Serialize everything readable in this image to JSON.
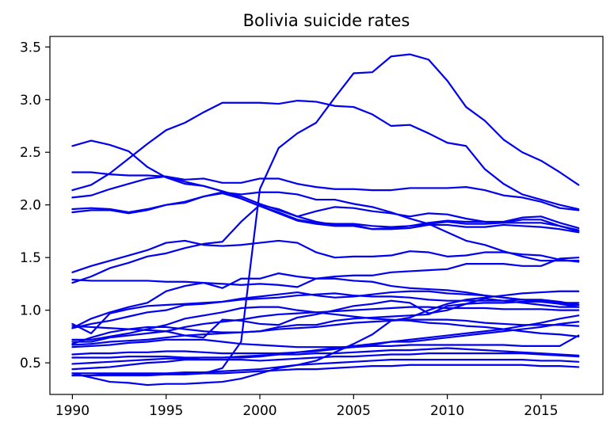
{
  "chart_data": {
    "type": "line",
    "title": "Bolivia suicide rates",
    "xlabel": "",
    "ylabel": "",
    "xlim": [
      1988.8,
      2018.3
    ],
    "ylim": [
      0.2,
      3.6
    ],
    "x_ticks": [
      1990,
      1995,
      2000,
      2005,
      2010,
      2015
    ],
    "y_ticks": [
      0.5,
      1.0,
      1.5,
      2.0,
      2.5,
      3.0,
      3.5
    ],
    "y_tick_labels": [
      "0.5",
      "1.0",
      "1.5",
      "2.0",
      "2.5",
      "3.0",
      "3.5"
    ],
    "line_color": "#0000ee",
    "grid": false,
    "legend": "none",
    "x": [
      1990,
      1991,
      1992,
      1993,
      1994,
      1995,
      1996,
      1997,
      1998,
      1999,
      2000,
      2001,
      2002,
      2003,
      2004,
      2005,
      2006,
      2007,
      2008,
      2009,
      2010,
      2011,
      2012,
      2013,
      2014,
      2015,
      2016,
      2017
    ],
    "series": [
      {
        "values": [
          0.4,
          0.36,
          0.32,
          0.31,
          0.29,
          0.3,
          0.3,
          0.31,
          0.32,
          0.35,
          0.4,
          0.45,
          0.48,
          0.52,
          0.6,
          0.68,
          0.77,
          0.9,
          0.93,
          1.0,
          1.06,
          1.1,
          1.12,
          1.14,
          1.16,
          1.17,
          1.18,
          1.18
        ]
      },
      {
        "values": [
          2.14,
          2.19,
          2.3,
          2.44,
          2.58,
          2.71,
          2.78,
          2.88,
          2.97,
          2.97,
          2.97,
          2.96,
          2.99,
          2.98,
          2.94,
          2.93,
          2.86,
          2.75,
          2.76,
          2.68,
          2.59,
          2.56,
          2.34,
          2.2,
          2.1,
          2.05,
          2.0,
          1.96
        ]
      },
      {
        "values": [
          0.38,
          0.38,
          0.38,
          0.38,
          0.38,
          0.39,
          0.39,
          0.4,
          0.45,
          0.7,
          2.15,
          2.54,
          2.68,
          2.78,
          3.02,
          3.25,
          3.26,
          3.41,
          3.43,
          3.38,
          3.18,
          2.93,
          2.8,
          2.62,
          2.5,
          2.42,
          2.31,
          2.19
        ]
      },
      {
        "values": [
          2.56,
          2.61,
          2.57,
          2.51,
          2.36,
          2.26,
          2.2,
          2.18,
          2.13,
          2.06,
          1.99,
          1.93,
          1.86,
          1.83,
          1.82,
          1.82,
          1.8,
          1.79,
          1.8,
          1.83,
          1.85,
          1.84,
          1.84,
          1.84,
          1.88,
          1.89,
          1.83,
          1.78
        ]
      },
      {
        "values": [
          2.31,
          2.31,
          2.29,
          2.28,
          2.28,
          2.27,
          2.24,
          2.25,
          2.21,
          2.21,
          2.25,
          2.25,
          2.2,
          2.17,
          2.15,
          2.15,
          2.14,
          2.14,
          2.16,
          2.16,
          2.16,
          2.17,
          2.14,
          2.09,
          2.07,
          2.03,
          1.97,
          1.95
        ]
      },
      {
        "values": [
          2.07,
          2.09,
          2.15,
          2.2,
          2.25,
          2.27,
          2.22,
          2.18,
          2.13,
          2.08,
          2.01,
          1.95,
          1.89,
          1.94,
          1.98,
          1.97,
          1.94,
          1.92,
          1.89,
          1.92,
          1.91,
          1.87,
          1.84,
          1.83,
          1.86,
          1.86,
          1.8,
          1.76
        ]
      },
      {
        "values": [
          1.96,
          1.97,
          1.96,
          1.93,
          1.96,
          2.0,
          2.03,
          2.08,
          2.12,
          2.1,
          2.12,
          2.12,
          2.1,
          2.05,
          2.05,
          2.01,
          1.98,
          1.93,
          1.87,
          1.82,
          1.74,
          1.66,
          1.62,
          1.56,
          1.51,
          1.47,
          1.47,
          1.47
        ]
      },
      {
        "values": [
          1.93,
          1.95,
          1.95,
          1.92,
          1.95,
          2.0,
          2.02,
          2.08,
          2.11,
          2.06,
          1.99,
          1.92,
          1.85,
          1.82,
          1.8,
          1.8,
          1.77,
          1.78,
          1.8,
          1.82,
          1.84,
          1.82,
          1.82,
          1.83,
          1.83,
          1.83,
          1.8,
          1.75
        ]
      },
      {
        "values": [
          1.36,
          1.42,
          1.47,
          1.52,
          1.57,
          1.64,
          1.66,
          1.62,
          1.61,
          1.62,
          1.64,
          1.66,
          1.64,
          1.55,
          1.5,
          1.51,
          1.51,
          1.52,
          1.56,
          1.55,
          1.51,
          1.52,
          1.55,
          1.55,
          1.53,
          1.52,
          1.48,
          1.46
        ]
      },
      {
        "values": [
          1.26,
          1.32,
          1.4,
          1.45,
          1.51,
          1.54,
          1.59,
          1.63,
          1.65,
          1.84,
          2.0,
          1.96,
          1.89,
          1.84,
          1.81,
          1.81,
          1.77,
          1.77,
          1.78,
          1.81,
          1.81,
          1.79,
          1.79,
          1.81,
          1.8,
          1.79,
          1.77,
          1.74
        ]
      },
      {
        "values": [
          1.29,
          1.28,
          1.28,
          1.28,
          1.28,
          1.27,
          1.27,
          1.26,
          1.25,
          1.24,
          1.25,
          1.24,
          1.22,
          1.3,
          1.32,
          1.33,
          1.33,
          1.36,
          1.37,
          1.38,
          1.39,
          1.44,
          1.44,
          1.44,
          1.42,
          1.42,
          1.49,
          1.5
        ]
      },
      {
        "values": [
          0.87,
          0.78,
          0.97,
          1.01,
          1.04,
          1.05,
          1.06,
          1.07,
          1.08,
          1.1,
          1.11,
          1.12,
          1.14,
          1.15,
          1.16,
          1.14,
          1.13,
          1.13,
          1.12,
          1.1,
          1.09,
          1.09,
          1.09,
          1.09,
          1.1,
          1.1,
          1.08,
          1.05
        ]
      },
      {
        "values": [
          0.83,
          0.92,
          0.98,
          1.03,
          1.07,
          1.18,
          1.23,
          1.26,
          1.21,
          1.3,
          1.3,
          1.35,
          1.32,
          1.3,
          1.3,
          1.28,
          1.27,
          1.23,
          1.21,
          1.2,
          1.19,
          1.17,
          1.14,
          1.12,
          1.1,
          1.09,
          1.06,
          1.05
        ]
      },
      {
        "values": [
          0.83,
          0.87,
          0.9,
          0.94,
          0.98,
          1.0,
          1.05,
          1.06,
          1.08,
          1.11,
          1.13,
          1.15,
          1.17,
          1.14,
          1.12,
          1.13,
          1.15,
          1.17,
          1.18,
          1.18,
          1.16,
          1.15,
          1.14,
          1.12,
          1.1,
          1.08,
          1.06,
          1.03
        ]
      },
      {
        "values": [
          0.85,
          0.84,
          0.83,
          0.82,
          0.81,
          0.8,
          0.84,
          0.87,
          0.89,
          0.91,
          0.94,
          0.96,
          0.97,
          0.98,
          0.99,
          1.0,
          1.01,
          1.02,
          1.03,
          1.03,
          1.02,
          1.02,
          1.02,
          1.01,
          1.01,
          1.01,
          1.0,
          1.0
        ]
      },
      {
        "values": [
          0.72,
          0.72,
          0.75,
          0.78,
          0.82,
          0.86,
          0.92,
          0.95,
          0.98,
          1.02,
          1.03,
          1.03,
          1.0,
          0.98,
          0.96,
          0.94,
          0.92,
          0.91,
          0.9,
          0.88,
          0.87,
          0.85,
          0.84,
          0.82,
          0.8,
          0.78,
          0.77,
          0.75
        ]
      },
      {
        "values": [
          0.7,
          0.7,
          0.74,
          0.76,
          0.78,
          0.8,
          0.76,
          0.74,
          0.91,
          0.9,
          0.87,
          0.86,
          0.93,
          0.96,
          1.0,
          1.04,
          1.06,
          1.09,
          1.07,
          0.97,
          1.0,
          1.06,
          1.11,
          1.09,
          1.07,
          1.05,
          1.03,
          1.03
        ]
      },
      {
        "values": [
          0.68,
          0.74,
          0.79,
          0.82,
          0.84,
          0.84,
          0.82,
          0.8,
          0.79,
          0.79,
          0.8,
          0.84,
          0.86,
          0.86,
          0.9,
          0.92,
          0.93,
          0.94,
          0.95,
          0.96,
          1.04,
          1.06,
          1.07,
          1.07,
          1.08,
          1.08,
          1.07,
          1.07
        ]
      },
      {
        "values": [
          0.67,
          0.68,
          0.7,
          0.71,
          0.72,
          0.74,
          0.76,
          0.77,
          0.78,
          0.79,
          0.8,
          0.82,
          0.83,
          0.84,
          0.86,
          0.88,
          0.89,
          0.9,
          0.91,
          0.91,
          0.91,
          0.9,
          0.88,
          0.87,
          0.86,
          0.86,
          0.86,
          0.85
        ]
      },
      {
        "values": [
          0.65,
          0.66,
          0.67,
          0.69,
          0.7,
          0.72,
          0.72,
          0.72,
          0.7,
          0.68,
          0.67,
          0.66,
          0.65,
          0.65,
          0.65,
          0.65,
          0.66,
          0.66,
          0.67,
          0.67,
          0.67,
          0.67,
          0.67,
          0.67,
          0.66,
          0.66,
          0.66,
          0.76
        ]
      },
      {
        "values": [
          0.58,
          0.59,
          0.59,
          0.6,
          0.6,
          0.61,
          0.61,
          0.6,
          0.59,
          0.59,
          0.59,
          0.59,
          0.6,
          0.61,
          0.63,
          0.65,
          0.67,
          0.7,
          0.7,
          0.72,
          0.74,
          0.76,
          0.78,
          0.8,
          0.82,
          0.84,
          0.87,
          0.89
        ]
      },
      {
        "values": [
          0.55,
          0.55,
          0.55,
          0.56,
          0.56,
          0.56,
          0.55,
          0.55,
          0.55,
          0.55,
          0.56,
          0.58,
          0.6,
          0.62,
          0.64,
          0.66,
          0.68,
          0.7,
          0.72,
          0.74,
          0.76,
          0.78,
          0.8,
          0.82,
          0.85,
          0.88,
          0.92,
          0.95
        ]
      },
      {
        "values": [
          0.49,
          0.5,
          0.51,
          0.52,
          0.53,
          0.54,
          0.54,
          0.55,
          0.55,
          0.56,
          0.57,
          0.58,
          0.58,
          0.59,
          0.59,
          0.6,
          0.61,
          0.62,
          0.62,
          0.63,
          0.64,
          0.63,
          0.62,
          0.61,
          0.6,
          0.59,
          0.58,
          0.57
        ]
      },
      {
        "values": [
          0.44,
          0.45,
          0.46,
          0.48,
          0.5,
          0.51,
          0.53,
          0.53,
          0.53,
          0.53,
          0.52,
          0.53,
          0.54,
          0.55,
          0.56,
          0.56,
          0.57,
          0.58,
          0.58,
          0.59,
          0.59,
          0.59,
          0.59,
          0.59,
          0.59,
          0.58,
          0.57,
          0.56
        ]
      },
      {
        "values": [
          0.4,
          0.4,
          0.4,
          0.4,
          0.4,
          0.4,
          0.41,
          0.41,
          0.42,
          0.43,
          0.44,
          0.46,
          0.48,
          0.49,
          0.5,
          0.51,
          0.52,
          0.53,
          0.53,
          0.53,
          0.53,
          0.53,
          0.53,
          0.53,
          0.53,
          0.52,
          0.52,
          0.51
        ]
      },
      {
        "values": [
          0.38,
          0.38,
          0.39,
          0.39,
          0.39,
          0.39,
          0.4,
          0.4,
          0.4,
          0.41,
          0.42,
          0.43,
          0.44,
          0.44,
          0.45,
          0.46,
          0.47,
          0.47,
          0.48,
          0.48,
          0.48,
          0.48,
          0.48,
          0.48,
          0.48,
          0.47,
          0.47,
          0.46
        ]
      }
    ]
  }
}
